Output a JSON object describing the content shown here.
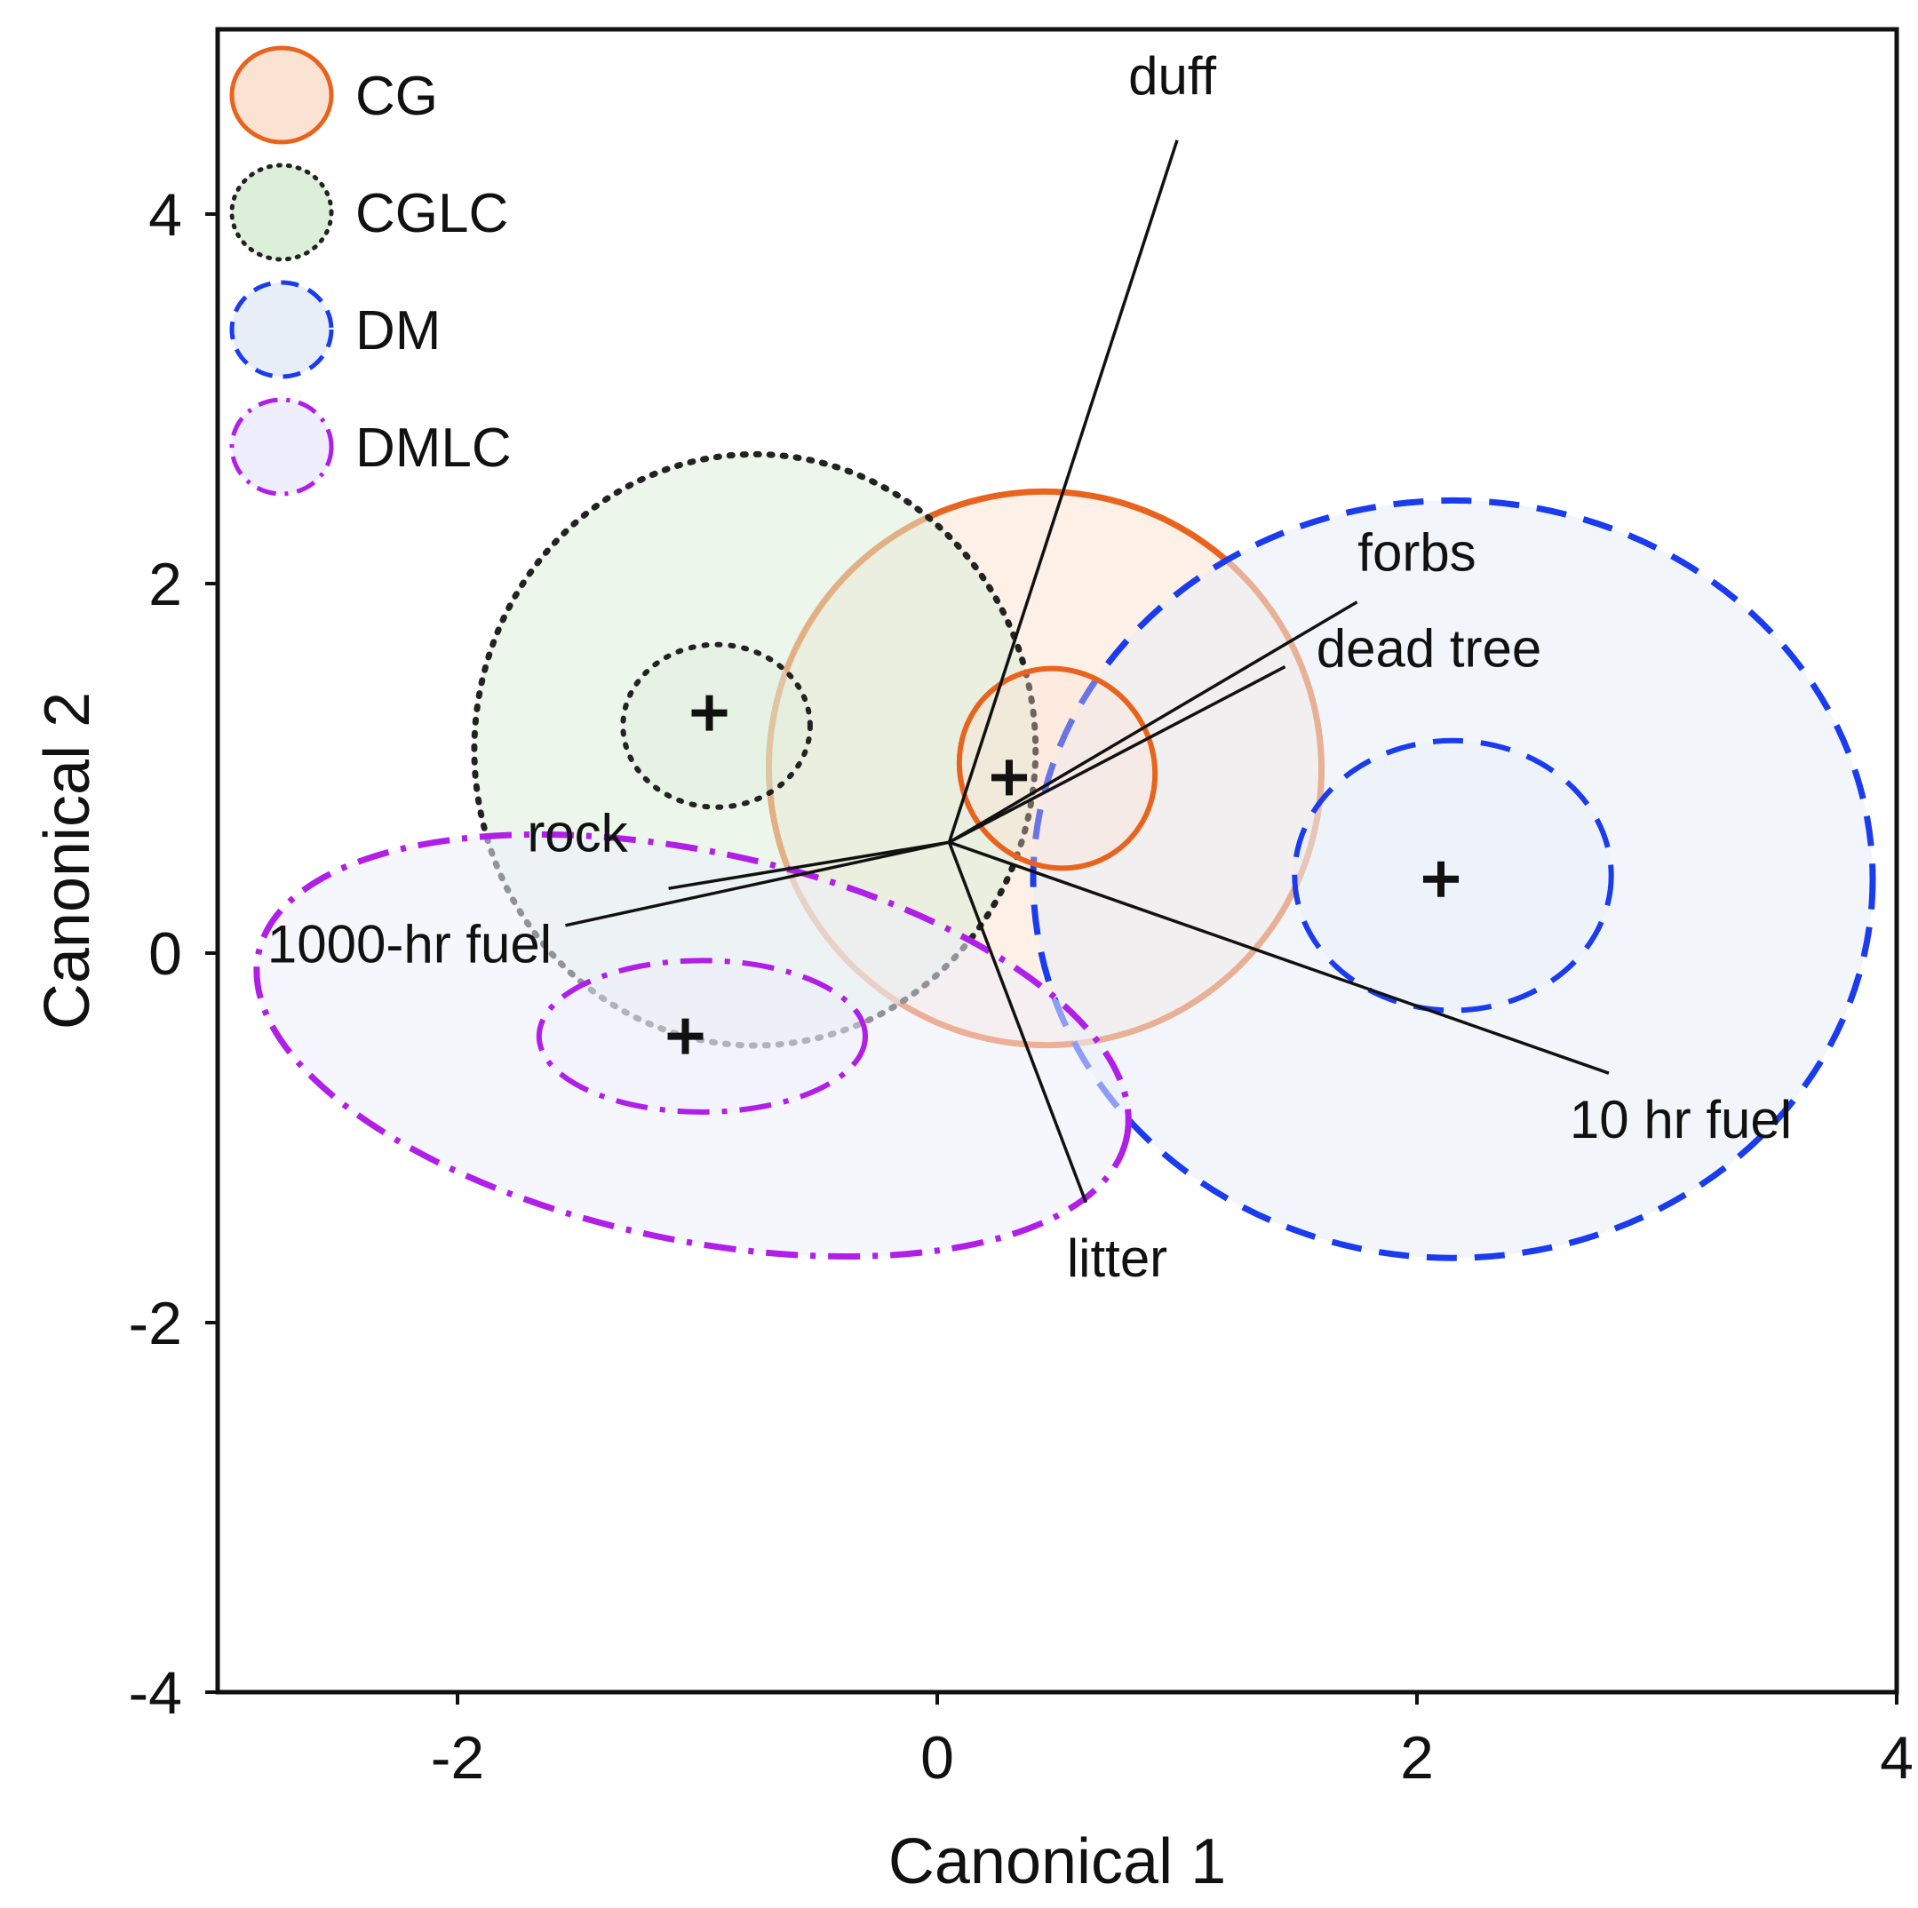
{
  "chart_data": {
    "type": "scatter",
    "title": "",
    "xlabel": "Canonical 1",
    "ylabel": "Canonical 2",
    "xlim": [
      -3,
      4
    ],
    "ylim": [
      -4,
      5
    ],
    "xticks": [
      -2,
      0,
      2,
      4
    ],
    "yticks": [
      -4,
      -2,
      0,
      2,
      4
    ],
    "xtick_labels": [
      "-2",
      "0",
      "2",
      "4"
    ],
    "ytick_labels": [
      "-4",
      "-2",
      "0",
      "2",
      "4"
    ],
    "grid": false,
    "legend_position": "top-left",
    "series": [
      {
        "name": "CG",
        "color": "#e8641e",
        "fill": "#fbe3d3",
        "line_style": "solid",
        "centroid": {
          "x": 0.3,
          "y": 0.95
        },
        "inner_ellipse": {
          "cx": 0.5,
          "cy": 1.0,
          "rx": 0.4,
          "ry": 0.55,
          "angle": 35
        },
        "outer_ellipse": {
          "cx": 0.45,
          "cy": 1.0,
          "rx": 1.15,
          "ry": 1.5,
          "angle": 35
        }
      },
      {
        "name": "CGLC",
        "color": "#222222",
        "fill": "#dcefd9",
        "line_style": "dotted",
        "centroid": {
          "x": -0.95,
          "y": 1.3
        },
        "inner_ellipse": {
          "cx": -0.92,
          "cy": 1.23,
          "rx": 0.39,
          "ry": 0.44,
          "angle": 0
        },
        "outer_ellipse": {
          "cx": -0.76,
          "cy": 1.1,
          "rx": 1.17,
          "ry": 1.6,
          "angle": 0
        }
      },
      {
        "name": "DM",
        "color": "#1a3bee",
        "fill": "#e7eef8",
        "line_style": "dashed",
        "centroid": {
          "x": 2.1,
          "y": 0.4
        },
        "inner_ellipse": {
          "cx": 2.15,
          "cy": 0.42,
          "rx": 0.66,
          "ry": 0.73,
          "angle": 0
        },
        "outer_ellipse": {
          "cx": 2.15,
          "cy": 0.4,
          "rx": 1.75,
          "ry": 2.05,
          "angle": 0
        }
      },
      {
        "name": "DMLC",
        "color": "#b01ee8",
        "fill": "#eeeefc",
        "line_style": "dash-dot",
        "centroid": {
          "x": -1.05,
          "y": -0.45
        },
        "inner_ellipse": {
          "cx": -0.98,
          "cy": -0.45,
          "rx": 0.68,
          "ry": 0.41,
          "angle": 0
        },
        "outer_ellipse": {
          "cx": -1.02,
          "cy": -0.5,
          "rx": 1.85,
          "ry": 1.05,
          "angle": -12
        }
      }
    ],
    "vectors": {
      "origin": {
        "x": 0.05,
        "y": 0.6
      },
      "items": [
        {
          "name": "duff",
          "end": {
            "x": 1.0,
            "y": 4.4
          },
          "label": "duff",
          "label_at": {
            "x": 0.98,
            "y": 4.65
          }
        },
        {
          "name": "forbs",
          "end": {
            "x": 1.75,
            "y": 1.9
          },
          "label": "forbs",
          "label_at": {
            "x": 2.0,
            "y": 2.07
          }
        },
        {
          "name": "dead tree",
          "end": {
            "x": 1.45,
            "y": 1.55
          },
          "label": "dead tree",
          "label_at": {
            "x": 2.05,
            "y": 1.55
          }
        },
        {
          "name": "rock",
          "end": {
            "x": -1.12,
            "y": 0.35
          },
          "label": "rock",
          "label_at": {
            "x": -1.5,
            "y": 0.55
          }
        },
        {
          "name": "1000-hr fuel",
          "end": {
            "x": -1.55,
            "y": 0.15
          },
          "label": "1000-hr fuel",
          "label_at": {
            "x": -2.2,
            "y": -0.05
          }
        },
        {
          "name": "litter",
          "end": {
            "x": 0.62,
            "y": -1.35
          },
          "label": "litter",
          "label_at": {
            "x": 0.75,
            "y": -1.75
          }
        },
        {
          "name": "10 hr fuel",
          "end": {
            "x": 2.8,
            "y": -0.65
          },
          "label": "10 hr fuel",
          "label_at": {
            "x": 3.1,
            "y": -1.0
          }
        }
      ]
    }
  }
}
